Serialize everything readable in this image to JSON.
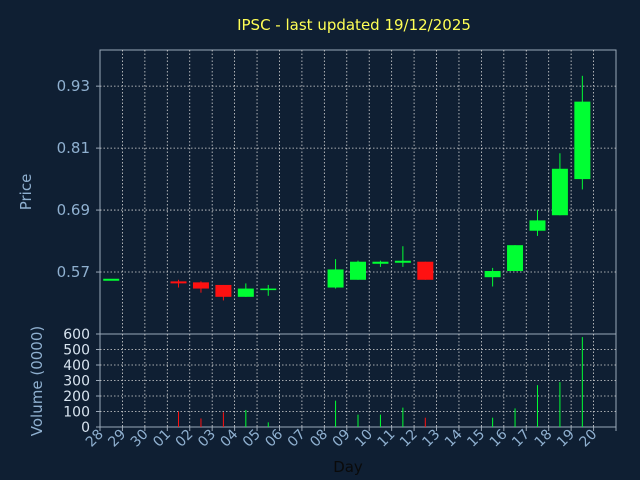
{
  "title": "IPSC - last updated 19/12/2025",
  "colors": {
    "background": "#0f1f33",
    "up": "#00ff33",
    "down": "#ff1111",
    "grid": "#d8d8d8",
    "title": "#ffff55",
    "axis": "#8fb0d0"
  },
  "chart_data": [
    {
      "type": "candlestick",
      "ylabel": "Price",
      "ylim": [
        0.45,
        1.0
      ],
      "yticks": [
        0.57,
        0.69,
        0.81,
        0.93
      ],
      "ytick_labels": [
        "0.57",
        "0.69",
        "0.81",
        "0.93"
      ],
      "grid": true,
      "categories": [
        "28",
        "29",
        "30",
        "01",
        "02",
        "03",
        "04",
        "05",
        "06",
        "07",
        "08",
        "09",
        "10",
        "11",
        "12",
        "13",
        "14",
        "15",
        "16",
        "17",
        "18",
        "19",
        "20"
      ],
      "candles": [
        {
          "x": "28",
          "open": 0.555,
          "high": 0.555,
          "low": 0.555,
          "close": 0.555
        },
        {
          "x": "01",
          "open": 0.55,
          "high": 0.555,
          "low": 0.54,
          "close": 0.548
        },
        {
          "x": "02",
          "open": 0.55,
          "high": 0.552,
          "low": 0.53,
          "close": 0.538
        },
        {
          "x": "03",
          "open": 0.545,
          "high": 0.545,
          "low": 0.515,
          "close": 0.522
        },
        {
          "x": "04",
          "open": 0.522,
          "high": 0.548,
          "low": 0.522,
          "close": 0.538
        },
        {
          "x": "05",
          "open": 0.535,
          "high": 0.545,
          "low": 0.524,
          "close": 0.538
        },
        {
          "x": "08",
          "open": 0.54,
          "high": 0.595,
          "low": 0.538,
          "close": 0.575
        },
        {
          "x": "09",
          "open": 0.555,
          "high": 0.592,
          "low": 0.555,
          "close": 0.59
        },
        {
          "x": "10",
          "open": 0.586,
          "high": 0.592,
          "low": 0.58,
          "close": 0.59
        },
        {
          "x": "11",
          "open": 0.588,
          "high": 0.62,
          "low": 0.58,
          "close": 0.59
        },
        {
          "x": "12",
          "open": 0.59,
          "high": 0.59,
          "low": 0.555,
          "close": 0.555
        },
        {
          "x": "15",
          "open": 0.56,
          "high": 0.578,
          "low": 0.542,
          "close": 0.572
        },
        {
          "x": "16",
          "open": 0.572,
          "high": 0.622,
          "low": 0.572,
          "close": 0.622
        },
        {
          "x": "17",
          "open": 0.65,
          "high": 0.69,
          "low": 0.64,
          "close": 0.67
        },
        {
          "x": "18",
          "open": 0.68,
          "high": 0.8,
          "low": 0.68,
          "close": 0.77
        },
        {
          "x": "19",
          "open": 0.75,
          "high": 0.95,
          "low": 0.73,
          "close": 0.9
        }
      ]
    },
    {
      "type": "bar",
      "ylabel": "Volume (0000)",
      "ylim": [
        0,
        600
      ],
      "yticks": [
        0,
        100,
        200,
        300,
        400,
        500,
        600
      ],
      "ytick_labels": [
        "0",
        "100",
        "200",
        "300",
        "400",
        "500",
        "600"
      ],
      "xlabel": "Day",
      "categories": [
        "28",
        "29",
        "30",
        "01",
        "02",
        "03",
        "04",
        "05",
        "06",
        "07",
        "08",
        "09",
        "10",
        "11",
        "12",
        "13",
        "14",
        "15",
        "16",
        "17",
        "18",
        "19",
        "20"
      ],
      "bars": [
        {
          "x": "01",
          "value": 100,
          "direction": "down"
        },
        {
          "x": "02",
          "value": 55,
          "direction": "down"
        },
        {
          "x": "03",
          "value": 95,
          "direction": "down"
        },
        {
          "x": "04",
          "value": 110,
          "direction": "up"
        },
        {
          "x": "05",
          "value": 30,
          "direction": "up"
        },
        {
          "x": "08",
          "value": 170,
          "direction": "up"
        },
        {
          "x": "09",
          "value": 80,
          "direction": "up"
        },
        {
          "x": "10",
          "value": 80,
          "direction": "up"
        },
        {
          "x": "11",
          "value": 125,
          "direction": "up"
        },
        {
          "x": "12",
          "value": 60,
          "direction": "down"
        },
        {
          "x": "15",
          "value": 60,
          "direction": "up"
        },
        {
          "x": "16",
          "value": 120,
          "direction": "up"
        },
        {
          "x": "17",
          "value": 270,
          "direction": "up"
        },
        {
          "x": "18",
          "value": 290,
          "direction": "up"
        },
        {
          "x": "19",
          "value": 580,
          "direction": "up"
        }
      ]
    }
  ]
}
